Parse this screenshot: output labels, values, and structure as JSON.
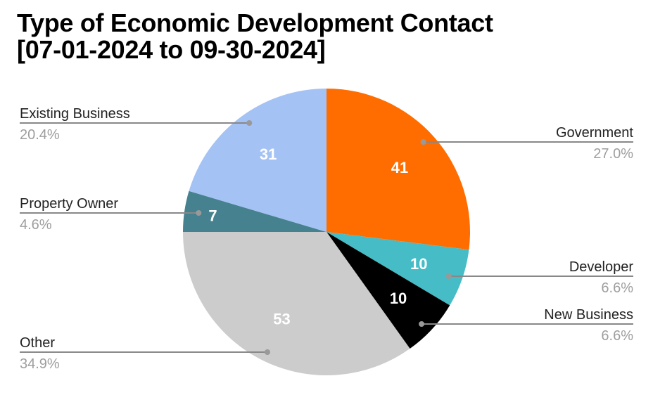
{
  "chart_data": {
    "type": "pie",
    "title_line1": "Type of Economic Development Contact",
    "title_line2": "[07-01-2024 to 09-30-2024]",
    "start_angle_deg": 0,
    "direction": "clockwise",
    "slices": [
      {
        "label": "Government",
        "value": 41,
        "percent": "27.0%",
        "color": "#ff6d01",
        "side": "right"
      },
      {
        "label": "Developer",
        "value": 10,
        "percent": "6.6%",
        "color": "#46bdc6",
        "side": "right"
      },
      {
        "label": "New Business",
        "value": 10,
        "percent": "6.6%",
        "color": "#000000",
        "side": "right"
      },
      {
        "label": "Other",
        "value": 53,
        "percent": "34.9%",
        "color": "#cccccc",
        "side": "left"
      },
      {
        "label": "Property Owner",
        "value": 7,
        "percent": "4.6%",
        "color": "#45818e",
        "side": "left"
      },
      {
        "label": "Existing Business",
        "value": 31,
        "percent": "20.4%",
        "color": "#a4c2f4",
        "side": "left"
      }
    ],
    "legend": "labeled-callouts"
  }
}
